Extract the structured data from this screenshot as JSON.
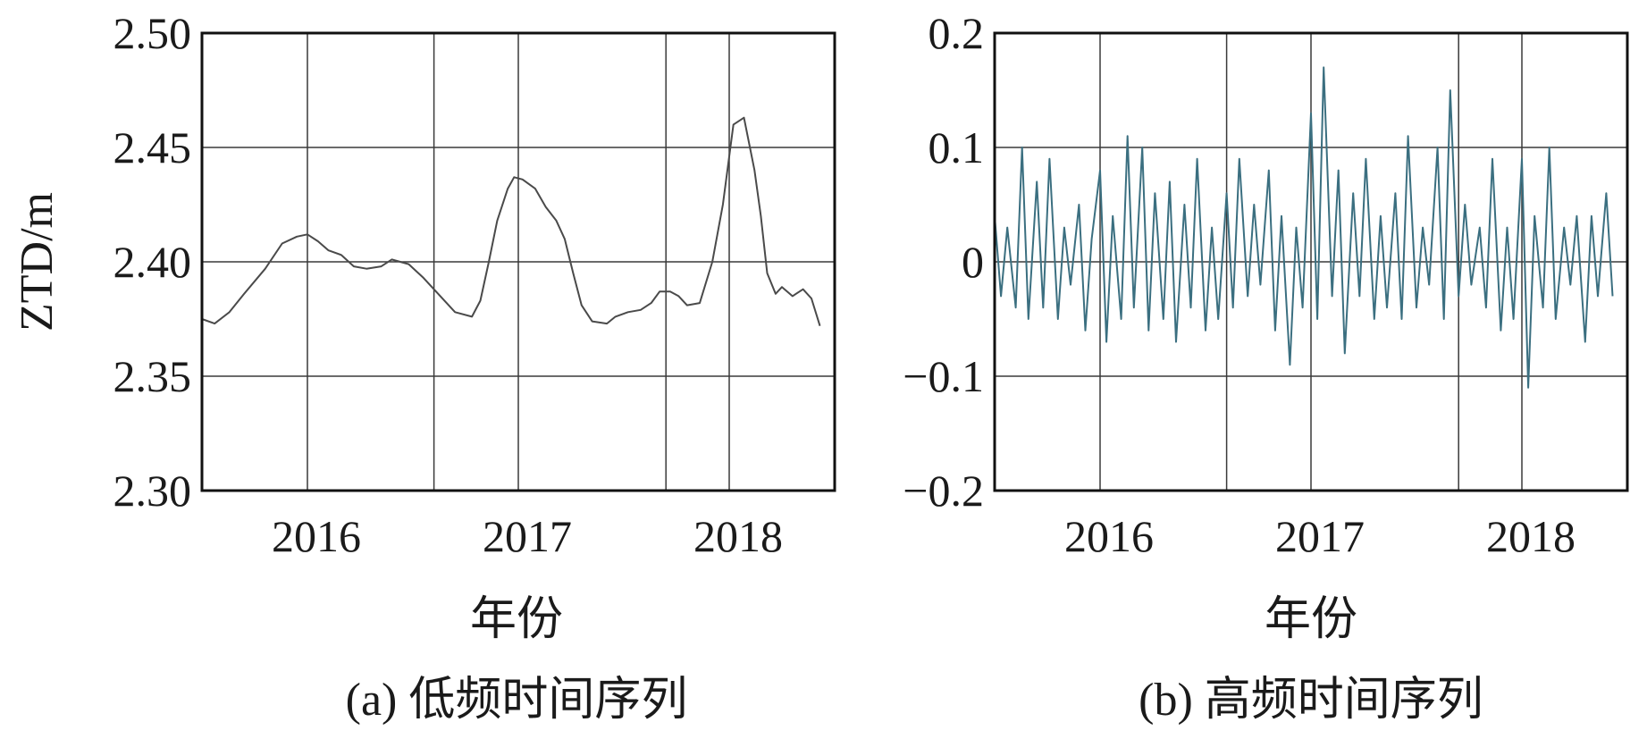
{
  "chart_data": [
    {
      "type": "line",
      "caption": "(a) 低频时间序列",
      "xlabel": "年份",
      "ylabel": "ZTD/m",
      "xlim": [
        2015.5,
        2018.5
      ],
      "ylim": [
        2.3,
        2.5
      ],
      "xticks": [
        2016,
        2017,
        2018
      ],
      "xtick_labels": [
        "2016",
        "2017",
        "2018"
      ],
      "xgrid": [
        2016.0,
        2016.6,
        2017.0,
        2017.7,
        2018.0
      ],
      "yticks": [
        2.3,
        2.35,
        2.4,
        2.45,
        2.5
      ],
      "ytick_labels": [
        "2.30",
        "2.35",
        "2.40",
        "2.45",
        "2.50"
      ],
      "grid": true,
      "color": "#4a4a4a",
      "series": [
        {
          "x": [
            2015.5,
            2015.56,
            2015.63,
            2015.7,
            2015.8,
            2015.88,
            2015.95,
            2016.0,
            2016.05,
            2016.1,
            2016.16,
            2016.22,
            2016.28,
            2016.35,
            2016.4,
            2016.48,
            2016.55,
            2016.62,
            2016.7,
            2016.78,
            2016.82,
            2016.86,
            2016.9,
            2016.95,
            2016.98,
            2017.02,
            2017.08,
            2017.13,
            2017.18,
            2017.22,
            2017.26,
            2017.3,
            2017.35,
            2017.42,
            2017.46,
            2017.52,
            2017.58,
            2017.63,
            2017.67,
            2017.72,
            2017.76,
            2017.8,
            2017.86,
            2017.92,
            2017.97,
            2018.02,
            2018.07,
            2018.12,
            2018.15,
            2018.18,
            2018.22,
            2018.25,
            2018.3,
            2018.35,
            2018.39,
            2018.43
          ],
          "y": [
            2.375,
            2.373,
            2.378,
            2.386,
            2.397,
            2.408,
            2.411,
            2.412,
            2.409,
            2.405,
            2.403,
            2.398,
            2.397,
            2.398,
            2.401,
            2.399,
            2.393,
            2.386,
            2.378,
            2.376,
            2.383,
            2.4,
            2.418,
            2.432,
            2.437,
            2.436,
            2.432,
            2.424,
            2.418,
            2.41,
            2.395,
            2.381,
            2.374,
            2.373,
            2.376,
            2.378,
            2.379,
            2.382,
            2.387,
            2.387,
            2.385,
            2.381,
            2.382,
            2.4,
            2.425,
            2.46,
            2.463,
            2.44,
            2.42,
            2.395,
            2.386,
            2.389,
            2.385,
            2.388,
            2.384,
            2.372
          ]
        }
      ]
    },
    {
      "type": "line",
      "caption": "(b) 高频时间序列",
      "xlabel": "年份",
      "xlim": [
        2015.5,
        2018.5
      ],
      "ylim": [
        -0.2,
        0.2
      ],
      "xticks": [
        2016,
        2017,
        2018
      ],
      "xtick_labels": [
        "2016",
        "2017",
        "2018"
      ],
      "xgrid": [
        2016.0,
        2016.6,
        2017.0,
        2017.7,
        2018.0
      ],
      "yticks": [
        -0.2,
        -0.1,
        0,
        0.1,
        0.2
      ],
      "ytick_labels": [
        "−0.2",
        "−0.1",
        "0",
        "0.1",
        "0.2"
      ],
      "grid": true,
      "color": "#3b6f80",
      "series": [
        {
          "x": [
            2015.5,
            2015.53,
            2015.56,
            2015.6,
            2015.63,
            2015.66,
            2015.7,
            2015.73,
            2015.76,
            2015.8,
            2015.83,
            2015.86,
            2015.9,
            2015.93,
            2015.96,
            2016.0,
            2016.03,
            2016.06,
            2016.1,
            2016.13,
            2016.16,
            2016.2,
            2016.23,
            2016.26,
            2016.3,
            2016.33,
            2016.36,
            2016.4,
            2016.43,
            2016.46,
            2016.5,
            2016.53,
            2016.56,
            2016.6,
            2016.63,
            2016.66,
            2016.7,
            2016.73,
            2016.76,
            2016.8,
            2016.83,
            2016.86,
            2016.9,
            2016.93,
            2016.96,
            2017.0,
            2017.03,
            2017.06,
            2017.1,
            2017.13,
            2017.16,
            2017.2,
            2017.23,
            2017.26,
            2017.3,
            2017.33,
            2017.36,
            2017.4,
            2017.43,
            2017.46,
            2017.5,
            2017.53,
            2017.56,
            2017.6,
            2017.63,
            2017.66,
            2017.7,
            2017.73,
            2017.76,
            2017.8,
            2017.83,
            2017.86,
            2017.9,
            2017.93,
            2017.96,
            2018.0,
            2018.03,
            2018.06,
            2018.1,
            2018.13,
            2018.16,
            2018.2,
            2018.23,
            2018.26,
            2018.3,
            2018.33,
            2018.36,
            2018.4,
            2018.43
          ],
          "y": [
            0.04,
            -0.03,
            0.03,
            -0.04,
            0.1,
            -0.05,
            0.07,
            -0.04,
            0.09,
            -0.05,
            0.03,
            -0.02,
            0.05,
            -0.06,
            0.02,
            0.08,
            -0.07,
            0.04,
            -0.05,
            0.11,
            -0.04,
            0.1,
            -0.06,
            0.06,
            -0.05,
            0.07,
            -0.07,
            0.05,
            -0.04,
            0.09,
            -0.06,
            0.03,
            -0.05,
            0.06,
            -0.04,
            0.09,
            -0.03,
            0.05,
            -0.02,
            0.08,
            -0.06,
            0.04,
            -0.09,
            0.03,
            -0.04,
            0.13,
            -0.05,
            0.17,
            -0.03,
            0.08,
            -0.08,
            0.06,
            -0.03,
            0.09,
            -0.05,
            0.04,
            -0.04,
            0.06,
            -0.05,
            0.11,
            -0.04,
            0.03,
            -0.02,
            0.1,
            -0.05,
            0.15,
            -0.03,
            0.05,
            -0.02,
            0.03,
            -0.04,
            0.09,
            -0.06,
            0.03,
            -0.05,
            0.09,
            -0.11,
            0.04,
            -0.04,
            0.1,
            -0.05,
            0.03,
            -0.02,
            0.04,
            -0.07,
            0.04,
            -0.03,
            0.06,
            -0.03
          ]
        }
      ]
    }
  ]
}
